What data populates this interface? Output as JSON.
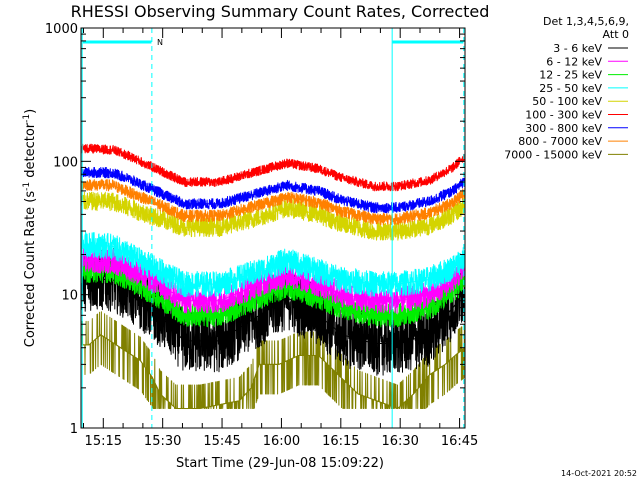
{
  "chart_data": {
    "type": "line",
    "title": "RHESSI Observing Summary Count Rates, Corrected",
    "xlabel": "Start Time (29-Jun-08 15:09:22)",
    "ylabel_main": "Corrected Count Rate (s",
    "ylabel_sup1": "-1",
    "ylabel_mid": " detector",
    "ylabel_sup2": "-1",
    "ylabel_end": ")",
    "yscale": "log",
    "ylim": [
      1,
      1000
    ],
    "xlim_minutes": [
      0,
      97
    ],
    "xticks": [
      {
        "m": 5.63,
        "label": "15:15"
      },
      {
        "m": 20.63,
        "label": "15:30"
      },
      {
        "m": 35.63,
        "label": "15:45"
      },
      {
        "m": 50.63,
        "label": "16:00"
      },
      {
        "m": 65.63,
        "label": "16:15"
      },
      {
        "m": 80.63,
        "label": "16:30"
      },
      {
        "m": 95.63,
        "label": "16:45"
      }
    ],
    "yticks": [
      {
        "v": 1,
        "label": "1"
      },
      {
        "v": 10,
        "label": "10"
      },
      {
        "v": 100,
        "label": "100"
      },
      {
        "v": 1000,
        "label": "1000"
      }
    ],
    "legend_header": [
      "Det 1,3,4,5,6,9,",
      "Att 0"
    ],
    "legend_position": "right",
    "series": [
      {
        "name": "3 - 6 keV",
        "color": "#000000",
        "x": [
          0,
          8,
          12,
          20,
          26,
          35,
          45,
          52,
          60,
          66,
          74,
          80,
          88,
          94,
          97
        ],
        "y": [
          13,
          13,
          11,
          7,
          4.5,
          4.5,
          7,
          9.5,
          7,
          5,
          4.3,
          4.3,
          5,
          8,
          11
        ]
      },
      {
        "name": "6 - 12 keV",
        "color": "#ff00ff",
        "x": [
          0,
          8,
          12,
          20,
          26,
          35,
          45,
          52,
          60,
          66,
          74,
          80,
          88,
          94,
          97
        ],
        "y": [
          18,
          18,
          16,
          12,
          9,
          9,
          12,
          14,
          12,
          10,
          9,
          9,
          10,
          13,
          16
        ]
      },
      {
        "name": "12 - 25 keV",
        "color": "#00ee00",
        "x": [
          0,
          8,
          12,
          20,
          26,
          35,
          45,
          52,
          60,
          66,
          74,
          80,
          88,
          94,
          97
        ],
        "y": [
          15,
          15,
          13,
          9.5,
          7,
          7,
          9.5,
          11.5,
          9.5,
          8,
          7,
          7,
          8,
          10.5,
          13
        ]
      },
      {
        "name": "25 - 50 keV",
        "color": "#00ffff",
        "x": [
          0,
          8,
          12,
          20,
          26,
          35,
          45,
          52,
          60,
          66,
          74,
          80,
          88,
          94,
          97
        ],
        "y": [
          24,
          23,
          20,
          15,
          12,
          12,
          15,
          18,
          15,
          13,
          12,
          12,
          13,
          16,
          19
        ]
      },
      {
        "name": "50 - 100 keV",
        "color": "#d4d400",
        "x": [
          0,
          8,
          12,
          20,
          26,
          35,
          45,
          52,
          60,
          66,
          74,
          80,
          88,
          94,
          97
        ],
        "y": [
          50,
          50,
          45,
          37,
          32,
          32,
          38,
          45,
          40,
          34,
          30,
          30,
          33,
          40,
          47
        ]
      },
      {
        "name": "100 - 300 keV",
        "color": "#ff0000",
        "x": [
          0,
          8,
          12,
          20,
          26,
          35,
          45,
          52,
          60,
          66,
          74,
          80,
          88,
          94,
          97
        ],
        "y": [
          125,
          122,
          110,
          85,
          70,
          70,
          85,
          97,
          88,
          75,
          65,
          65,
          72,
          90,
          110
        ]
      },
      {
        "name": "300 - 800 keV",
        "color": "#0000ff",
        "x": [
          0,
          8,
          12,
          20,
          26,
          35,
          45,
          52,
          60,
          66,
          74,
          80,
          88,
          94,
          97
        ],
        "y": [
          83,
          82,
          74,
          58,
          48,
          48,
          58,
          66,
          60,
          51,
          45,
          45,
          50,
          60,
          72
        ]
      },
      {
        "name": "800 - 7000 keV",
        "color": "#ff8000",
        "x": [
          0,
          8,
          12,
          20,
          26,
          35,
          45,
          52,
          60,
          66,
          74,
          80,
          88,
          94,
          97
        ],
        "y": [
          67,
          66,
          59,
          47,
          39,
          39,
          47,
          54,
          49,
          42,
          37,
          37,
          41,
          49,
          58
        ]
      },
      {
        "name": "7000 - 15000 keV",
        "color": "#808000",
        "x": [
          0,
          2,
          5,
          10,
          15,
          18,
          20,
          24,
          30,
          40,
          43,
          45,
          50,
          55,
          60,
          65,
          70,
          80,
          84,
          88,
          92,
          95,
          97
        ],
        "y": [
          4.2,
          4.2,
          5,
          4,
          3.2,
          2.4,
          1.8,
          1.4,
          1.4,
          1.6,
          2,
          3,
          3,
          3.5,
          3.5,
          2.5,
          1.8,
          1.4,
          1.8,
          2.5,
          3,
          3.6,
          4
        ]
      }
    ],
    "flags": [
      {
        "label": "N",
        "color": "#00ffff"
      }
    ],
    "footer_timestamp": "14-Oct-2021 20:52"
  }
}
